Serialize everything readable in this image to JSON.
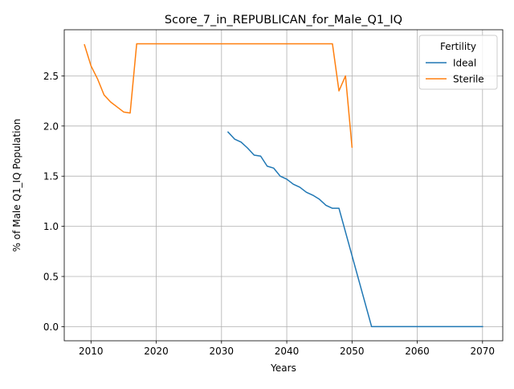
{
  "chart_data": {
    "type": "line",
    "title": "Score_7_in_REPUBLICAN_for_Male_Q1_IQ",
    "xlabel": "Years",
    "ylabel": "% of Male Q1_IQ Population",
    "xlim": [
      2005.9,
      2073.1
    ],
    "ylim": [
      -0.141,
      2.96
    ],
    "xticks": [
      2010,
      2020,
      2030,
      2040,
      2050,
      2060,
      2070
    ],
    "yticks": [
      0.0,
      0.5,
      1.0,
      1.5,
      2.0,
      2.5
    ],
    "grid": true,
    "legend": {
      "title": "Fertility",
      "placement": "top-right"
    },
    "series": [
      {
        "name": "Ideal",
        "color": "#1f77b4",
        "points": [
          [
            2031,
            1.94
          ],
          [
            2032,
            1.87
          ],
          [
            2033,
            1.84
          ],
          [
            2034,
            1.78
          ],
          [
            2035,
            1.71
          ],
          [
            2036,
            1.7
          ],
          [
            2037,
            1.6
          ],
          [
            2038,
            1.58
          ],
          [
            2039,
            1.5
          ],
          [
            2040,
            1.47
          ],
          [
            2041,
            1.42
          ],
          [
            2042,
            1.39
          ],
          [
            2043,
            1.34
          ],
          [
            2044,
            1.31
          ],
          [
            2045,
            1.27
          ],
          [
            2046,
            1.21
          ],
          [
            2047,
            1.18
          ],
          [
            2048,
            1.18
          ],
          [
            2053,
            0.0
          ],
          [
            2070,
            0.0
          ]
        ]
      },
      {
        "name": "Sterile",
        "color": "#ff7f0e",
        "points": [
          [
            2009,
            2.81
          ],
          [
            2010,
            2.6
          ],
          [
            2011,
            2.47
          ],
          [
            2012,
            2.31
          ],
          [
            2013,
            2.24
          ],
          [
            2014,
            2.19
          ],
          [
            2015,
            2.14
          ],
          [
            2016,
            2.13
          ],
          [
            2017,
            2.82
          ],
          [
            2047,
            2.82
          ],
          [
            2048,
            2.35
          ],
          [
            2049,
            2.5
          ],
          [
            2050,
            1.79
          ]
        ]
      }
    ]
  }
}
